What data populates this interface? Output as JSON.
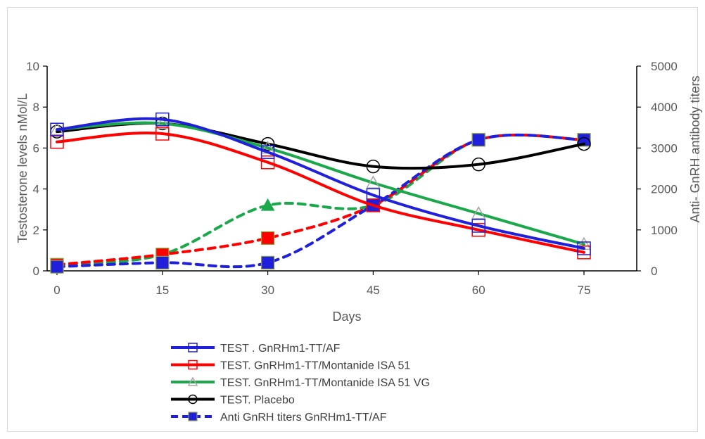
{
  "chart_data": {
    "type": "line",
    "x": [
      0,
      15,
      30,
      45,
      60,
      75
    ],
    "x_ticks": [
      "0",
      "15",
      "30",
      "45",
      "60",
      "75"
    ],
    "xlabel": "Days",
    "ylabel_left": "Testosterone levels nMol/L",
    "ylabel_right": "Anti- GnRH antibody titers",
    "ylim_left": [
      0,
      10
    ],
    "ylim_right": [
      0,
      5000
    ],
    "y_left_ticks": [
      "0",
      "2",
      "4",
      "6",
      "8",
      "10"
    ],
    "y_right_ticks": [
      "0",
      "1000",
      "2000",
      "3000",
      "4000",
      "5000"
    ],
    "grid": false,
    "legend_position": "bottom-left",
    "series": [
      {
        "name": "TEST . GnRHm1-TT/AF",
        "axis": "left",
        "color": "#1f1fdc",
        "style": "solid",
        "marker": "open-square",
        "values": [
          6.9,
          7.4,
          5.8,
          3.7,
          2.2,
          1.1
        ]
      },
      {
        "name": "TEST. GnRHm1-TT/Montanide ISA 51",
        "axis": "left",
        "color": "#ff0000",
        "style": "solid",
        "marker": "open-square",
        "values": [
          6.3,
          6.7,
          5.3,
          3.2,
          2.0,
          0.9
        ]
      },
      {
        "name": "TEST. GnRHm1-TT/Montanide ISA 51 VG",
        "axis": "left",
        "color": "#1aa84b",
        "style": "solid",
        "marker": "open-triangle",
        "values": [
          6.9,
          7.2,
          6.0,
          4.3,
          2.8,
          1.3
        ]
      },
      {
        "name": "TEST. Placebo",
        "axis": "left",
        "color": "#000000",
        "style": "solid",
        "marker": "open-circle",
        "values": [
          6.8,
          7.2,
          6.2,
          5.1,
          5.2,
          6.2
        ]
      },
      {
        "name": "Anti GnRH titers GnRHm1-TT/AF",
        "axis": "right",
        "color": "#1f1fdc",
        "style": "dashed",
        "marker": "filled-square",
        "values": [
          100,
          200,
          200,
          1600,
          3200,
          3200
        ]
      },
      {
        "name": "",
        "axis": "right",
        "color": "#ff0000",
        "style": "dashed",
        "marker": "filled-square",
        "values": [
          150,
          400,
          800,
          1600,
          3200,
          3200
        ]
      },
      {
        "name": "",
        "axis": "right",
        "color": "#1aa84b",
        "style": "dashed",
        "marker": "filled-triangle",
        "values": [
          150,
          400,
          1600,
          1600,
          3200,
          3200
        ]
      }
    ]
  }
}
